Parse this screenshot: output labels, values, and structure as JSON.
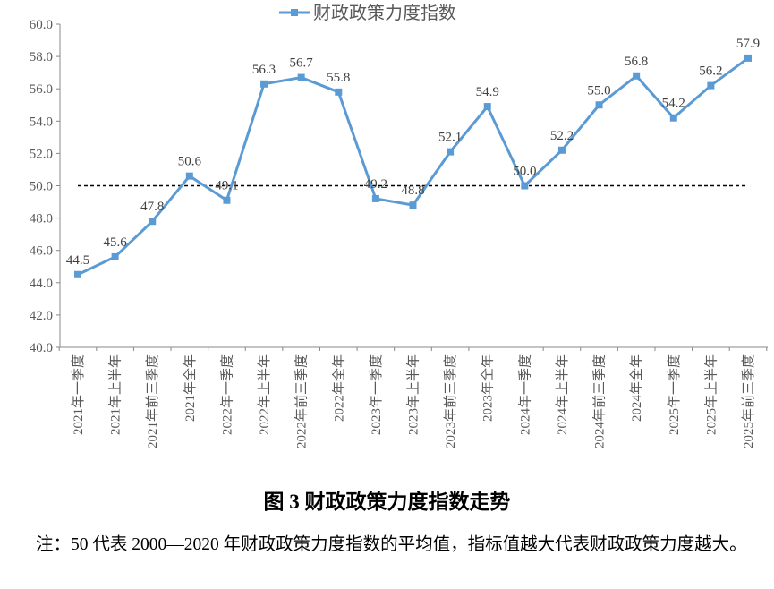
{
  "chart_data": {
    "type": "line",
    "legend": {
      "label": "财政政策力度指数",
      "placement": "top"
    },
    "categories": [
      "2021年一季度",
      "2021年上半年",
      "2021年前三季度",
      "2021年全年",
      "2022年一季度",
      "2022年上半年",
      "2022年前三季度",
      "2022年全年",
      "2023年一季度",
      "2023年上半年",
      "2023年前三季度",
      "2023年全年",
      "2024年一季度",
      "2024年上半年",
      "2024年前三季度",
      "2024年全年",
      "2025年一季度",
      "2025年上半年",
      "2025年前三季度"
    ],
    "series": [
      {
        "name": "财政政策力度指数",
        "color": "#5B9BD5",
        "marker": "square",
        "values": [
          44.5,
          45.6,
          47.8,
          50.6,
          49.1,
          56.3,
          56.7,
          55.8,
          49.2,
          48.8,
          52.1,
          54.9,
          50.0,
          52.2,
          55.0,
          56.8,
          54.2,
          56.2,
          57.9
        ]
      }
    ],
    "reference_line": {
      "value": 50,
      "style": "dashed",
      "color": "#000000"
    },
    "ylim": [
      40,
      60
    ],
    "yticks": [
      "40.0",
      "42.0",
      "44.0",
      "46.0",
      "48.0",
      "50.0",
      "52.0",
      "54.0",
      "56.0",
      "58.0",
      "60.0"
    ],
    "grid": false,
    "data_labels": true
  },
  "caption": "图 3  财政政策力度指数走势",
  "note": "注：50 代表 2000—2020 年财政政策力度指数的平均值，指标值越大代表财政政策力度越大。"
}
